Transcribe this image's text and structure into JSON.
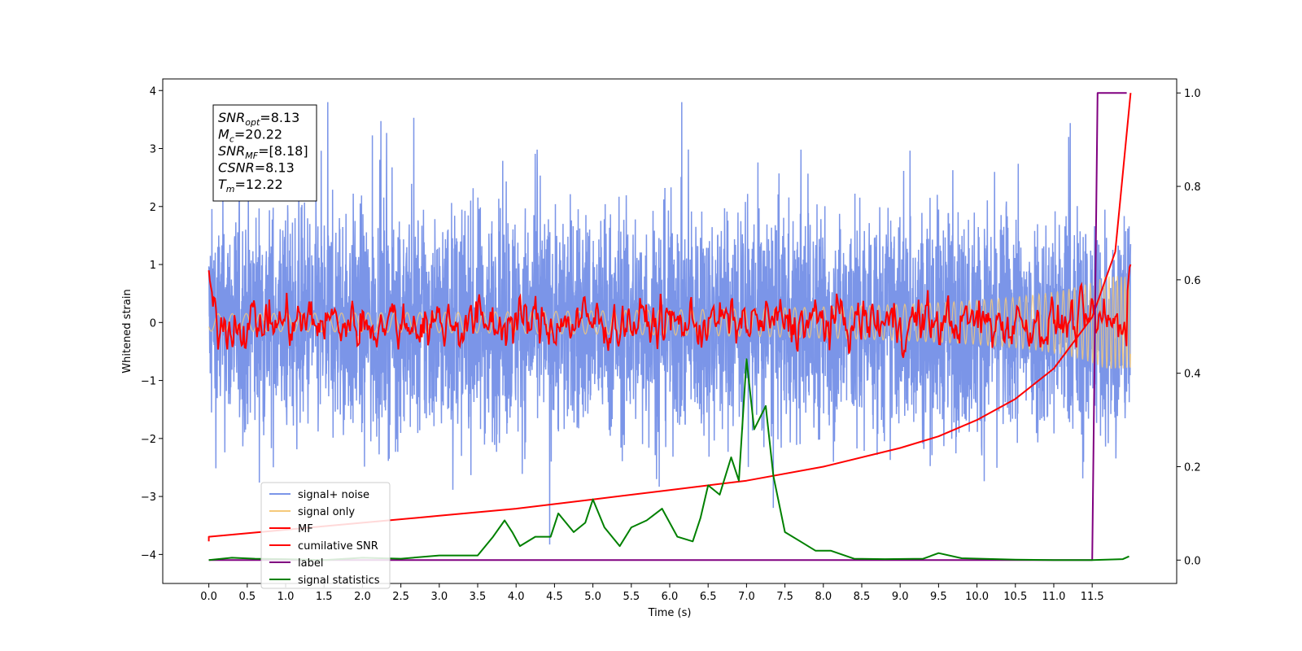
{
  "chart_data": {
    "type": "line",
    "xlabel": "Time (s)",
    "ylabel": "Whitened strain",
    "xlim": [
      -0.6,
      12.6
    ],
    "ylim": [
      -4.5,
      4.2
    ],
    "y2lim": [
      -0.05,
      1.03
    ],
    "x_ticks": [
      "0.0",
      "0.5",
      "1.0",
      "1.5",
      "2.0",
      "2.5",
      "3.0",
      "3.5",
      "4.0",
      "4.5",
      "5.0",
      "5.5",
      "6.0",
      "6.5",
      "7.0",
      "7.5",
      "8.0",
      "8.5",
      "9.0",
      "9.5",
      "10.0",
      "10.5",
      "11.0",
      "11.5"
    ],
    "y_ticks": [
      "4",
      "3",
      "2",
      "1",
      "0",
      "−1",
      "−2",
      "−3",
      "−4"
    ],
    "y2_ticks": [
      "1.0",
      "0.8",
      "0.6",
      "0.4",
      "0.2",
      "0.0"
    ],
    "annotation": {
      "lines": [
        {
          "sym": "SNR",
          "sub": "opt",
          "value": "=8.13"
        },
        {
          "sym": "M",
          "sub": "c",
          "value": "=20.22"
        },
        {
          "sym": "SNR",
          "sub": "MF",
          "value": "=[8.18]"
        },
        {
          "sym": "CSNR",
          "sub": "",
          "value": "=8.13"
        },
        {
          "sym": "T",
          "sub": "m",
          "value": "=12.22"
        }
      ]
    },
    "series": [
      {
        "name": "signal+ noise",
        "color": "#7b95e8",
        "axis": "left",
        "kind": "noise",
        "t_range": [
          0,
          12.0
        ],
        "approx_range": [
          -4.2,
          3.8
        ],
        "note_band": "dense oscillation mostly between -2.3 and 2.0"
      },
      {
        "name": "signal only",
        "color": "#f5c97a",
        "axis": "left",
        "kind": "chirp",
        "t_range": [
          0,
          12.0
        ],
        "amplitude_end": 0.8
      },
      {
        "name": "MF",
        "color": "#ff0000",
        "axis": "left",
        "kind": "mf",
        "t_range": [
          0,
          12.0
        ],
        "start": 0.9,
        "end": 1.0,
        "band": [
          -0.2,
          0.35
        ]
      },
      {
        "name": "cumilative SNR",
        "color": "#ff0000",
        "axis": "right",
        "points": [
          [
            0,
            0.04
          ],
          [
            0,
            0.05
          ],
          [
            1,
            0.065
          ],
          [
            2,
            0.08
          ],
          [
            3,
            0.095
          ],
          [
            4,
            0.11
          ],
          [
            5,
            0.13
          ],
          [
            6,
            0.15
          ],
          [
            7,
            0.17
          ],
          [
            8,
            0.2
          ],
          [
            9,
            0.24
          ],
          [
            9.5,
            0.265
          ],
          [
            10,
            0.3
          ],
          [
            10.5,
            0.345
          ],
          [
            11,
            0.41
          ],
          [
            11.5,
            0.52
          ],
          [
            11.8,
            0.66
          ],
          [
            12.0,
            1.0
          ]
        ]
      },
      {
        "name": "label",
        "color": "#800080",
        "axis": "right",
        "points": [
          [
            0,
            0
          ],
          [
            11.5,
            0
          ],
          [
            11.57,
            1.0
          ],
          [
            11.95,
            1.0
          ]
        ]
      },
      {
        "name": "signal statistics",
        "color": "#008000",
        "axis": "right",
        "points": [
          [
            0,
            0.0
          ],
          [
            0.3,
            0.005
          ],
          [
            0.6,
            0.003
          ],
          [
            1.0,
            0.002
          ],
          [
            1.5,
            0.0
          ],
          [
            2.0,
            0.005
          ],
          [
            2.5,
            0.003
          ],
          [
            3.0,
            0.01
          ],
          [
            3.5,
            0.01
          ],
          [
            3.7,
            0.05
          ],
          [
            3.85,
            0.085
          ],
          [
            3.95,
            0.06
          ],
          [
            4.05,
            0.03
          ],
          [
            4.25,
            0.05
          ],
          [
            4.45,
            0.05
          ],
          [
            4.55,
            0.1
          ],
          [
            4.75,
            0.06
          ],
          [
            4.9,
            0.08
          ],
          [
            5.0,
            0.13
          ],
          [
            5.15,
            0.07
          ],
          [
            5.35,
            0.03
          ],
          [
            5.5,
            0.07
          ],
          [
            5.7,
            0.085
          ],
          [
            5.9,
            0.11
          ],
          [
            6.1,
            0.05
          ],
          [
            6.3,
            0.04
          ],
          [
            6.4,
            0.09
          ],
          [
            6.5,
            0.16
          ],
          [
            6.65,
            0.14
          ],
          [
            6.8,
            0.22
          ],
          [
            6.9,
            0.17
          ],
          [
            7.0,
            0.43
          ],
          [
            7.1,
            0.28
          ],
          [
            7.25,
            0.33
          ],
          [
            7.35,
            0.18
          ],
          [
            7.5,
            0.06
          ],
          [
            7.7,
            0.04
          ],
          [
            7.9,
            0.02
          ],
          [
            8.1,
            0.02
          ],
          [
            8.4,
            0.003
          ],
          [
            8.8,
            0.002
          ],
          [
            9.3,
            0.003
          ],
          [
            9.5,
            0.015
          ],
          [
            9.8,
            0.004
          ],
          [
            10.5,
            0.001
          ],
          [
            11.0,
            0.0
          ],
          [
            11.5,
            0.0
          ],
          [
            11.9,
            0.002
          ],
          [
            11.98,
            0.008
          ]
        ]
      }
    ],
    "legend_position": "bottom-left",
    "grid": false
  }
}
